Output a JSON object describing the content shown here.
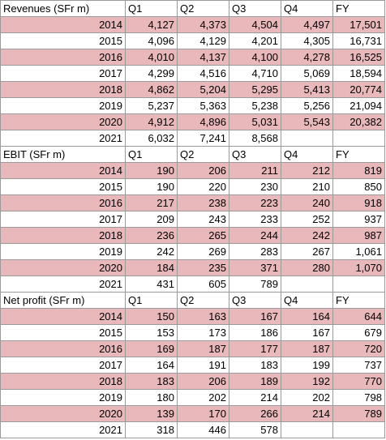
{
  "colors": {
    "row_shade": "#e8b8bb",
    "grid": "#9a9a9a"
  },
  "sections": [
    {
      "headers": [
        "Revenues (SFr m)",
        "Q1",
        "Q2",
        "Q3",
        "Q4",
        "FY"
      ],
      "rows": [
        {
          "year": "2014",
          "shaded": true,
          "values": [
            "4,127",
            "4,373",
            "4,504",
            "4,497",
            "17,501"
          ]
        },
        {
          "year": "2015",
          "shaded": false,
          "values": [
            "4,096",
            "4,129",
            "4,201",
            "4,305",
            "16,731"
          ]
        },
        {
          "year": "2016",
          "shaded": true,
          "values": [
            "4,010",
            "4,137",
            "4,100",
            "4,278",
            "16,525"
          ]
        },
        {
          "year": "2017",
          "shaded": false,
          "values": [
            "4,299",
            "4,516",
            "4,710",
            "5,069",
            "18,594"
          ]
        },
        {
          "year": "2018",
          "shaded": true,
          "values": [
            "4,862",
            "5,204",
            "5,295",
            "5,413",
            "20,774"
          ]
        },
        {
          "year": "2019",
          "shaded": false,
          "values": [
            "5,237",
            "5,363",
            "5,238",
            "5,256",
            "21,094"
          ]
        },
        {
          "year": "2020",
          "shaded": true,
          "values": [
            "4,912",
            "4,896",
            "5,031",
            "5,543",
            "20,382"
          ]
        },
        {
          "year": "2021",
          "shaded": false,
          "values": [
            "6,032",
            "7,241",
            "8,568",
            "",
            ""
          ]
        }
      ]
    },
    {
      "headers": [
        "EBIT (SFr m)",
        "Q1",
        "Q2",
        "Q3",
        "Q4",
        "FY"
      ],
      "rows": [
        {
          "year": "2014",
          "shaded": true,
          "values": [
            "190",
            "206",
            "211",
            "212",
            "819"
          ]
        },
        {
          "year": "2015",
          "shaded": false,
          "values": [
            "190",
            "220",
            "230",
            "210",
            "850"
          ]
        },
        {
          "year": "2016",
          "shaded": true,
          "values": [
            "217",
            "238",
            "223",
            "240",
            "918"
          ]
        },
        {
          "year": "2017",
          "shaded": false,
          "values": [
            "209",
            "243",
            "233",
            "252",
            "937"
          ]
        },
        {
          "year": "2018",
          "shaded": true,
          "values": [
            "236",
            "265",
            "244",
            "242",
            "987"
          ]
        },
        {
          "year": "2019",
          "shaded": false,
          "values": [
            "242",
            "269",
            "283",
            "267",
            "1,061"
          ]
        },
        {
          "year": "2020",
          "shaded": true,
          "values": [
            "184",
            "235",
            "371",
            "280",
            "1,070"
          ]
        },
        {
          "year": "2021",
          "shaded": false,
          "values": [
            "431",
            "605",
            "789",
            "",
            ""
          ]
        }
      ]
    },
    {
      "headers": [
        "Net profit (SFr m)",
        "Q1",
        "Q2",
        "Q3",
        "Q4",
        "FY"
      ],
      "rows": [
        {
          "year": "2014",
          "shaded": true,
          "values": [
            "150",
            "163",
            "167",
            "164",
            "644"
          ]
        },
        {
          "year": "2015",
          "shaded": false,
          "values": [
            "153",
            "173",
            "186",
            "167",
            "679"
          ]
        },
        {
          "year": "2016",
          "shaded": true,
          "values": [
            "169",
            "187",
            "177",
            "187",
            "720"
          ]
        },
        {
          "year": "2017",
          "shaded": false,
          "values": [
            "164",
            "191",
            "183",
            "199",
            "737"
          ]
        },
        {
          "year": "2018",
          "shaded": true,
          "values": [
            "183",
            "206",
            "189",
            "192",
            "770"
          ]
        },
        {
          "year": "2019",
          "shaded": false,
          "values": [
            "180",
            "202",
            "214",
            "202",
            "798"
          ]
        },
        {
          "year": "2020",
          "shaded": true,
          "values": [
            "139",
            "170",
            "266",
            "214",
            "789"
          ]
        },
        {
          "year": "2021",
          "shaded": false,
          "values": [
            "318",
            "446",
            "578",
            "",
            ""
          ]
        }
      ]
    }
  ]
}
